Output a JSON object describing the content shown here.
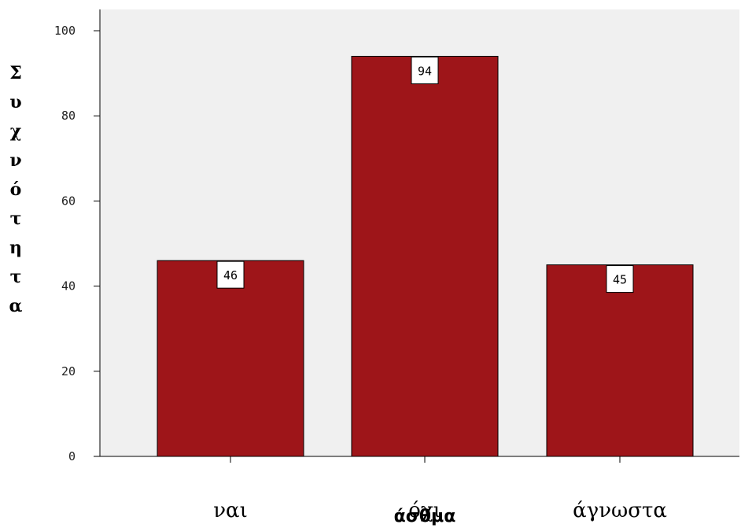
{
  "chart_data": {
    "type": "bar",
    "categories": [
      "ναι",
      "όχι",
      "άγνωστα"
    ],
    "values": [
      46,
      94,
      45
    ],
    "data_labels": [
      "46",
      "94",
      "45"
    ],
    "xlabel": "άσθμα",
    "ylabel": "Συχνότητα",
    "ylim": [
      0,
      105
    ],
    "yticks": [
      0,
      20,
      40,
      60,
      80,
      100
    ],
    "ytick_labels": [
      "0",
      "20",
      "40",
      "60",
      "80",
      "100"
    ],
    "grid": false,
    "colors": {
      "bar": "#9e1519",
      "plot_background": "#f0f0f0",
      "label_box": "#ffffff"
    }
  }
}
